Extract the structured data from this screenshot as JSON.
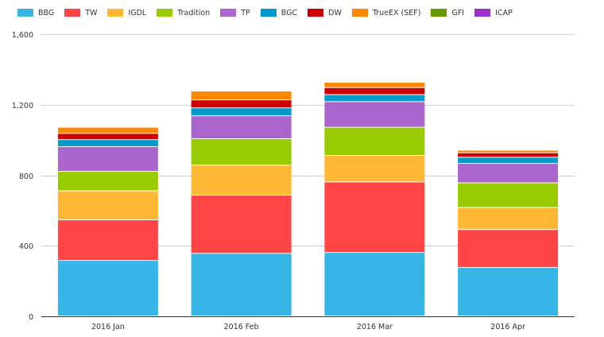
{
  "chart_data": {
    "type": "bar",
    "stacked": true,
    "categories": [
      "2016 Jan",
      "2016 Feb",
      "2016 Mar",
      "2016 Apr"
    ],
    "ylim": [
      0,
      1600
    ],
    "yticks": [
      "0",
      "400",
      "800",
      "1,200",
      "1,600"
    ],
    "ytick_values": [
      0,
      400,
      800,
      1200,
      1600
    ],
    "grid": true,
    "legend_position": "top-left",
    "series": [
      {
        "name": "BBG",
        "color": "#36b5e6",
        "values": [
          315,
          355,
          360,
          275
        ]
      },
      {
        "name": "TW",
        "color": "#ff4545",
        "values": [
          230,
          330,
          400,
          215
        ]
      },
      {
        "name": "IGDL",
        "color": "#ffb833",
        "values": [
          165,
          170,
          150,
          125
        ]
      },
      {
        "name": "Tradition",
        "color": "#99cc00",
        "values": [
          110,
          150,
          160,
          140
        ]
      },
      {
        "name": "TP",
        "color": "#aa66cc",
        "values": [
          140,
          130,
          145,
          110
        ]
      },
      {
        "name": "BGC",
        "color": "#0099cc",
        "values": [
          40,
          45,
          40,
          35
        ]
      },
      {
        "name": "DW",
        "color": "#cc0000",
        "values": [
          35,
          45,
          40,
          25
        ]
      },
      {
        "name": "TrueEX (SEF)",
        "color": "#ff8800",
        "values": [
          35,
          50,
          30,
          15
        ]
      },
      {
        "name": "GFI",
        "color": "#669900",
        "values": [
          0,
          0,
          0,
          0
        ]
      },
      {
        "name": "ICAP",
        "color": "#9933cc",
        "values": [
          0,
          0,
          0,
          0
        ]
      }
    ]
  }
}
